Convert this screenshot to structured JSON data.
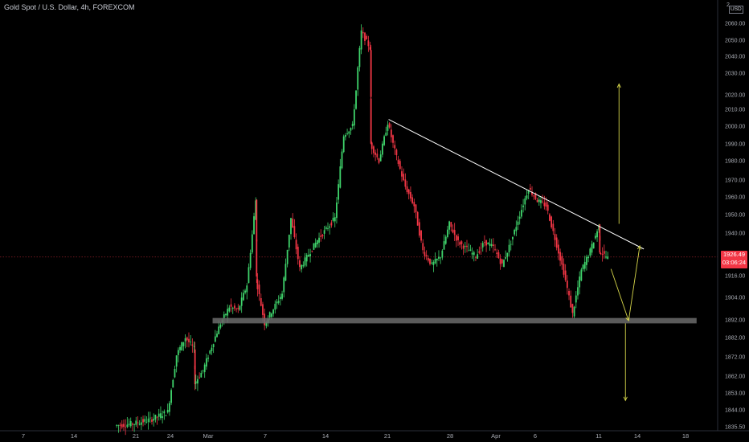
{
  "header": {
    "symbol_title": "Gold Spot / U.S. Dollar, 4h, FOREXCOM",
    "corner_label": "2",
    "currency_badge": "USD"
  },
  "price_badge": {
    "price": "1926.49",
    "countdown": "03:06:24",
    "color": "#f23645"
  },
  "colors": {
    "up": "#26a69a",
    "up_bright": "#3fd36b",
    "down": "#f23645",
    "trendline": "#ffffff",
    "arrows": "#d6d64a",
    "support_zone": "#6b6b6b"
  },
  "chart_data": {
    "type": "candlestick",
    "title": "Gold Spot / U.S. Dollar, 4h, FOREXCOM",
    "ylim": [
      1832,
      2075
    ],
    "y_ticks": [
      "2060.00",
      "2050.00",
      "2040.00",
      "2030.00",
      "2020.00",
      "2010.00",
      "2000.00",
      "1990.00",
      "1980.00",
      "1970.00",
      "1960.00",
      "1950.00",
      "1940.00",
      "1916.00",
      "1904.00",
      "1892.00",
      "1882.00",
      "1872.00",
      "1862.00",
      "1853.00",
      "1844.00",
      "1835.50"
    ],
    "x_ticks": [
      "7",
      "14",
      "21",
      "24",
      "Mar",
      "7",
      "14",
      "21",
      "28",
      "Apr",
      "6",
      "11",
      "14",
      "18"
    ],
    "current_price": 1926.49,
    "price_path": [
      {
        "t": "Feb 8",
        "p": 1836
      },
      {
        "t": "Feb 10",
        "p": 1837
      },
      {
        "t": "Feb 12",
        "p": 1839
      },
      {
        "t": "Feb 14",
        "p": 1843
      },
      {
        "t": "Feb 15",
        "p": 1873
      },
      {
        "t": "Feb 16",
        "p": 1882
      },
      {
        "t": "Feb 17",
        "p": 1876
      },
      {
        "t": "Feb 17",
        "p": 1858
      },
      {
        "t": "Feb 18",
        "p": 1865
      },
      {
        "t": "Feb 20",
        "p": 1890
      },
      {
        "t": "Feb 21",
        "p": 1899
      },
      {
        "t": "Feb 22",
        "p": 1897
      },
      {
        "t": "Feb 23",
        "p": 1911
      },
      {
        "t": "Feb 24",
        "p": 1958
      },
      {
        "t": "Feb 24",
        "p": 1915
      },
      {
        "t": "Feb 25",
        "p": 1890
      },
      {
        "t": "Feb 27",
        "p": 1906
      },
      {
        "t": "Feb 28",
        "p": 1948
      },
      {
        "t": "Mar 1",
        "p": 1920
      },
      {
        "t": "Mar 3",
        "p": 1936
      },
      {
        "t": "Mar 5",
        "p": 1948
      },
      {
        "t": "Mar 6",
        "p": 1995
      },
      {
        "t": "Mar 7",
        "p": 2000
      },
      {
        "t": "Mar 8",
        "p": 2055
      },
      {
        "t": "Mar 9",
        "p": 2045
      },
      {
        "t": "Mar 9",
        "p": 1990
      },
      {
        "t": "Mar 10",
        "p": 1980
      },
      {
        "t": "Mar 11",
        "p": 2002
      },
      {
        "t": "Mar 12",
        "p": 1982
      },
      {
        "t": "Mar 13",
        "p": 1966
      },
      {
        "t": "Mar 14",
        "p": 1955
      },
      {
        "t": "Mar 15",
        "p": 1930
      },
      {
        "t": "Mar 16",
        "p": 1922
      },
      {
        "t": "Mar 17",
        "p": 1927
      },
      {
        "t": "Mar 18",
        "p": 1945
      },
      {
        "t": "Mar 19",
        "p": 1935
      },
      {
        "t": "Mar 21",
        "p": 1927
      },
      {
        "t": "Mar 22",
        "p": 1935
      },
      {
        "t": "Mar 23",
        "p": 1932
      },
      {
        "t": "Mar 24",
        "p": 1922
      },
      {
        "t": "Mar 25",
        "p": 1935
      },
      {
        "t": "Mar 26",
        "p": 1950
      },
      {
        "t": "Mar 27",
        "p": 1965
      },
      {
        "t": "Mar 28",
        "p": 1958
      },
      {
        "t": "Mar 29",
        "p": 1955
      },
      {
        "t": "Mar 30",
        "p": 1937
      },
      {
        "t": "Mar 31",
        "p": 1918
      },
      {
        "t": "Apr 1",
        "p": 1895
      },
      {
        "t": "Apr 2",
        "p": 1919
      },
      {
        "t": "Apr 3",
        "p": 1930
      },
      {
        "t": "Apr 4",
        "p": 1944
      },
      {
        "t": "Apr 4",
        "p": 1930
      },
      {
        "t": "Apr 5",
        "p": 1926
      }
    ],
    "trendline": {
      "from": {
        "t": "Mar 11",
        "p": 2004
      },
      "to": {
        "t": "Apr 9",
        "p": 1931
      }
    },
    "support_zone": {
      "from": "Feb 19",
      "to": "Apr 15",
      "low": 1890,
      "high": 1893
    },
    "projections": {
      "up_target": 2025,
      "down_target": 1849,
      "path": [
        {
          "t": "Apr 6",
          "p": 1918
        },
        {
          "t": "Apr 7",
          "p": 1892
        },
        {
          "t": "Apr 9",
          "p": 1931
        }
      ]
    }
  }
}
